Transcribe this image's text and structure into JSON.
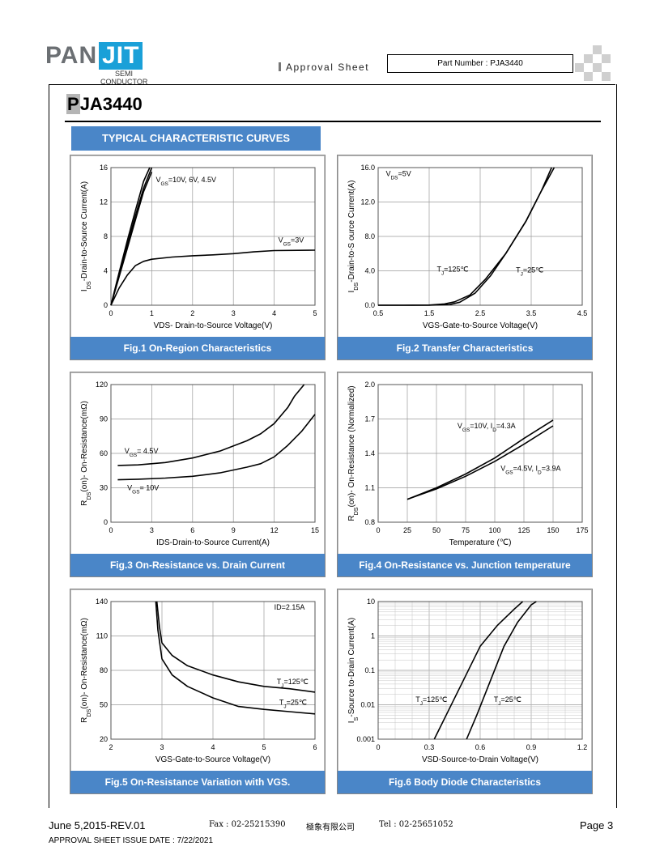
{
  "header": {
    "logo_pan": "PAN",
    "logo_jit": "JIT",
    "logo_sub1": "SEMI",
    "logo_sub2": "CONDUCTOR",
    "approval": "Approval Sheet",
    "part_number": "Part Number : PJA3440"
  },
  "page": {
    "title_first": "P",
    "title_rest": "JA3440",
    "section": "TYPICAL CHARACTERISTIC CURVES"
  },
  "footer": {
    "date_rev": "June 5,2015-REV.01",
    "fax": "Fax : 02-25215390",
    "company": "極象有限公司",
    "tel": "Tel : 02-25651052",
    "page": "Page 3",
    "issue": "APPROVAL SHEET ISSUE DATE : 7/22/2021"
  },
  "chart_data": [
    {
      "id": "fig1",
      "type": "line",
      "caption": "Fig.1 On-Region Characteristics",
      "xlabel": "VDS- Drain-to-Source Voltage(V)",
      "ylabel": "I_DS-Drain-to-Source Current(A)",
      "xlim": [
        0,
        5
      ],
      "ylim": [
        0,
        16
      ],
      "xticks": [
        "0",
        "1",
        "2",
        "3",
        "4",
        "5"
      ],
      "yticks": [
        "0",
        "4",
        "8",
        "12",
        "16"
      ],
      "grid": true,
      "annotations": [
        {
          "text": "V_GS=10V, 6V, 4.5V",
          "x": 1.1,
          "y": 14.3
        },
        {
          "text": "V_GS=3V",
          "x": 4.1,
          "y": 7.3
        }
      ],
      "series": [
        {
          "points": [
            [
              0,
              0
            ],
            [
              0.2,
              3.8
            ],
            [
              0.4,
              7.5
            ],
            [
              0.6,
              11
            ],
            [
              0.8,
              14.4
            ],
            [
              0.95,
              16
            ]
          ]
        },
        {
          "points": [
            [
              0,
              0
            ],
            [
              0.2,
              3.5
            ],
            [
              0.4,
              7
            ],
            [
              0.6,
              10.4
            ],
            [
              0.8,
              13.6
            ],
            [
              1.0,
              16
            ]
          ]
        },
        {
          "points": [
            [
              0,
              0
            ],
            [
              0.2,
              3.3
            ],
            [
              0.4,
              6.6
            ],
            [
              0.6,
              9.9
            ],
            [
              0.8,
              13.2
            ],
            [
              1.0,
              15.5
            ]
          ]
        },
        {
          "points": [
            [
              0,
              0
            ],
            [
              0.2,
              2
            ],
            [
              0.4,
              3.5
            ],
            [
              0.6,
              4.6
            ],
            [
              0.8,
              5.1
            ],
            [
              1,
              5.35
            ],
            [
              1.5,
              5.6
            ],
            [
              2,
              5.75
            ],
            [
              2.5,
              5.85
            ],
            [
              3,
              6.0
            ],
            [
              3.5,
              6.2
            ],
            [
              4,
              6.35
            ],
            [
              5,
              6.4
            ]
          ]
        }
      ]
    },
    {
      "id": "fig2",
      "type": "line",
      "caption": "Fig.2 Transfer Characteristics",
      "xlabel": "VGS-Gate-to-Source Voltage(V)",
      "ylabel": "I_DS-Drain-to-S ource Current(A)",
      "xlim": [
        0.5,
        4.5
      ],
      "ylim": [
        0,
        16
      ],
      "xticks": [
        "0.5",
        "1.5",
        "2.5",
        "3.5",
        "4.5"
      ],
      "yticks": [
        "0.0",
        "4.0",
        "8.0",
        "12.0",
        "16.0"
      ],
      "grid": true,
      "annotations": [
        {
          "text": "V_DS=5V",
          "x": 0.65,
          "y": 15.0
        },
        {
          "text": "T_J=125℃",
          "x": 1.65,
          "y": 3.9
        },
        {
          "text": "T_J=25℃",
          "x": 3.2,
          "y": 3.8
        }
      ],
      "series": [
        {
          "points": [
            [
              0.5,
              0
            ],
            [
              1.0,
              0
            ],
            [
              1.5,
              0.02
            ],
            [
              1.8,
              0.15
            ],
            [
              2.0,
              0.4
            ],
            [
              2.3,
              1.2
            ],
            [
              2.6,
              3.0
            ],
            [
              3.0,
              6.0
            ],
            [
              3.4,
              9.8
            ],
            [
              3.7,
              13.3
            ],
            [
              3.95,
              16
            ]
          ]
        },
        {
          "points": [
            [
              0.5,
              0
            ],
            [
              1.0,
              0
            ],
            [
              1.5,
              0
            ],
            [
              1.9,
              0.08
            ],
            [
              2.1,
              0.35
            ],
            [
              2.4,
              1.4
            ],
            [
              2.7,
              3.4
            ],
            [
              3.0,
              6.0
            ],
            [
              3.4,
              9.8
            ],
            [
              3.7,
              13.3
            ],
            [
              3.9,
              16
            ]
          ]
        }
      ]
    },
    {
      "id": "fig3",
      "type": "line",
      "caption": "Fig.3 On-Resistance vs. Drain Current",
      "xlabel": "IDS-Drain-to-Source  Current(A)",
      "ylabel": "R_DS(on)- On-Resistance(mΩ)",
      "xlim": [
        0,
        15
      ],
      "ylim": [
        0,
        120
      ],
      "xticks": [
        "0",
        "3",
        "6",
        "9",
        "12",
        "15"
      ],
      "yticks": [
        "0",
        "30",
        "60",
        "90",
        "120"
      ],
      "grid": true,
      "annotations": [
        {
          "text": "V_GS= 4.5V",
          "x": 1.0,
          "y": 60
        },
        {
          "text": "V_GS= 10V",
          "x": 1.2,
          "y": 28
        }
      ],
      "series": [
        {
          "points": [
            [
              0.5,
              49.5
            ],
            [
              2,
              50
            ],
            [
              4,
              52
            ],
            [
              6,
              56
            ],
            [
              8,
              62
            ],
            [
              10,
              71
            ],
            [
              11,
              77
            ],
            [
              12,
              86
            ],
            [
              13,
              100
            ],
            [
              13.5,
              110
            ],
            [
              14.2,
              120
            ]
          ]
        },
        {
          "points": [
            [
              0.5,
              37
            ],
            [
              2,
              37.5
            ],
            [
              4,
              38.5
            ],
            [
              6,
              40
            ],
            [
              8,
              43
            ],
            [
              10,
              48
            ],
            [
              11,
              51
            ],
            [
              12,
              57
            ],
            [
              13,
              67
            ],
            [
              14,
              79
            ],
            [
              15,
              94
            ]
          ]
        }
      ]
    },
    {
      "id": "fig4",
      "type": "line",
      "caption": "Fig.4 On-Resistance vs. Junction temperature",
      "xlabel": "Temperature (℃)",
      "ylabel": "R_DS(on)- On-Resistance (Normalized)",
      "xlim": [
        0,
        175
      ],
      "ylim": [
        0.8,
        2.0
      ],
      "xticks": [
        "0",
        "25",
        "50",
        "75",
        "100",
        "125",
        "150",
        "175"
      ],
      "yticks": [
        "0.8",
        "1.1",
        "1.4",
        "1.7",
        "2.0"
      ],
      "grid": true,
      "annotations": [
        {
          "text": "V_GS=10V, I_D=4.3A",
          "x": 68,
          "y": 1.62
        },
        {
          "text": "V_GS=4.5V, I_D=3.9A",
          "x": 105,
          "y": 1.25
        }
      ],
      "series": [
        {
          "points": [
            [
              25,
              1.0
            ],
            [
              50,
              1.1
            ],
            [
              75,
              1.22
            ],
            [
              100,
              1.36
            ],
            [
              125,
              1.53
            ],
            [
              150,
              1.69
            ]
          ]
        },
        {
          "points": [
            [
              25,
              1.0
            ],
            [
              50,
              1.09
            ],
            [
              75,
              1.2
            ],
            [
              100,
              1.33
            ],
            [
              125,
              1.48
            ],
            [
              150,
              1.64
            ]
          ]
        }
      ]
    },
    {
      "id": "fig5",
      "type": "line",
      "caption": "Fig.5 On-Resistance Variation with VGS.",
      "xlabel": "VGS-Gate-to-Source  Voltage(V)",
      "ylabel": "R_DS(on)- On-Resistance(mΩ)",
      "xlim": [
        2,
        6
      ],
      "ylim": [
        20,
        140
      ],
      "xticks": [
        "2",
        "3",
        "4",
        "5",
        "6"
      ],
      "yticks": [
        "20",
        "50",
        "80",
        "110",
        "140"
      ],
      "grid": true,
      "annotations": [
        {
          "text": "ID=2.15A",
          "x": 5.2,
          "y": 133
        },
        {
          "text": "T_J=125℃",
          "x": 5.25,
          "y": 68
        },
        {
          "text": "T_J=25℃",
          "x": 5.3,
          "y": 50
        }
      ],
      "series": [
        {
          "points": [
            [
              2.9,
              140
            ],
            [
              2.95,
              118
            ],
            [
              3.0,
              104
            ],
            [
              3.2,
              93
            ],
            [
              3.5,
              84
            ],
            [
              4.0,
              76
            ],
            [
              4.5,
              70
            ],
            [
              5.0,
              66
            ],
            [
              5.5,
              64
            ],
            [
              6.0,
              61
            ]
          ]
        },
        {
          "points": [
            [
              2.88,
              140
            ],
            [
              2.92,
              115
            ],
            [
              3.0,
              90
            ],
            [
              3.2,
              76
            ],
            [
              3.5,
              66
            ],
            [
              4.0,
              56
            ],
            [
              4.5,
              48.5
            ],
            [
              5.0,
              46
            ],
            [
              5.5,
              44
            ],
            [
              6.0,
              42
            ]
          ]
        }
      ]
    },
    {
      "id": "fig6",
      "type": "line",
      "scale": "log-y",
      "caption": "Fig.6 Body Diode Characteristics",
      "xlabel": "VSD-Source-to-Drain Voltage(V)",
      "ylabel": "I_S-Source  to-Drain Current(A)",
      "xlim": [
        0,
        1.2
      ],
      "ylim": [
        0.001,
        10
      ],
      "xticks": [
        "0",
        "0.3",
        "0.6",
        "0.9",
        "1.2"
      ],
      "yticks": [
        "0.001",
        "0.01",
        "0.1",
        "1",
        "10"
      ],
      "grid": true,
      "annotations": [
        {
          "text": "T_J=125℃",
          "x": 0.22,
          "y": 0.012
        },
        {
          "text": "T_J=25℃",
          "x": 0.68,
          "y": 0.012
        }
      ],
      "series": [
        {
          "points": [
            [
              0.33,
              0.001
            ],
            [
              0.4,
              0.005
            ],
            [
              0.5,
              0.05
            ],
            [
              0.6,
              0.5
            ],
            [
              0.7,
              2
            ],
            [
              0.8,
              6
            ],
            [
              0.85,
              10
            ]
          ]
        },
        {
          "points": [
            [
              0.52,
              0.001
            ],
            [
              0.58,
              0.005
            ],
            [
              0.66,
              0.05
            ],
            [
              0.74,
              0.5
            ],
            [
              0.82,
              2.5
            ],
            [
              0.9,
              8
            ],
            [
              0.93,
              10
            ]
          ]
        }
      ]
    }
  ]
}
